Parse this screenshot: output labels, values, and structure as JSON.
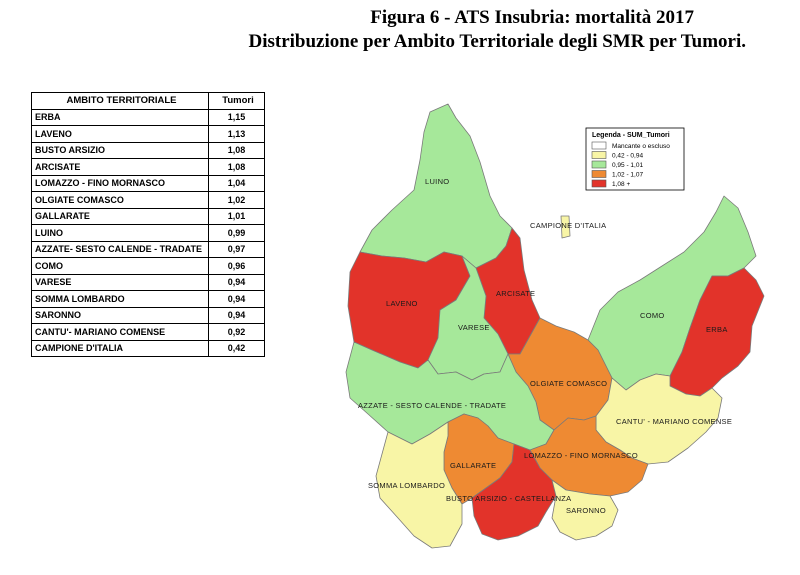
{
  "title": "Figura 6 - ATS Insubria: mortalità 2017",
  "subtitle": "Distribuzione per Ambito Territoriale degli SMR per Tumori.",
  "table": {
    "header_area": "AMBITO TERRITORIALE",
    "header_value": "Tumori",
    "rows": [
      {
        "area": "ERBA",
        "value": "1,15"
      },
      {
        "area": "LAVENO",
        "value": "1,13"
      },
      {
        "area": "BUSTO ARSIZIO",
        "value": "1,08"
      },
      {
        "area": "ARCISATE",
        "value": "1,08"
      },
      {
        "area": "LOMAZZO - FINO MORNASCO",
        "value": "1,04"
      },
      {
        "area": "OLGIATE COMASCO",
        "value": "1,02"
      },
      {
        "area": "GALLARATE",
        "value": "1,01"
      },
      {
        "area": "LUINO",
        "value": "0,99"
      },
      {
        "area": "AZZATE- SESTO CALENDE - TRADATE",
        "value": "0,97"
      },
      {
        "area": "COMO",
        "value": "0,96"
      },
      {
        "area": "VARESE",
        "value": "0,94"
      },
      {
        "area": "SOMMA LOMBARDO",
        "value": "0,94"
      },
      {
        "area": "SARONNO",
        "value": "0,94"
      },
      {
        "area": "CANTU'- MARIANO COMENSE",
        "value": "0,92"
      },
      {
        "area": "CAMPIONE D'ITALIA",
        "value": "0,42"
      }
    ]
  },
  "legend": {
    "title": "Legenda - SUM_Tumori",
    "items": [
      {
        "label": "Mancante o escluso",
        "color": "#ffffff"
      },
      {
        "label": "0,42 - 0,94",
        "color": "#f8f5a6"
      },
      {
        "label": "0,95 - 1,01",
        "color": "#a6e89a"
      },
      {
        "label": "1,02 - 1,07",
        "color": "#ee8a33"
      },
      {
        "label": "1,08 +",
        "color": "#e2332a"
      }
    ]
  },
  "map_labels": {
    "luino": "LUINO",
    "campione": "CAMPIONE D'ITALIA",
    "laveno": "LAVENO",
    "arcisate": "ARCISATE",
    "varese": "VARESE",
    "como": "COMO",
    "erba": "ERBA",
    "olgiate": "OLGIATE COMASCO",
    "azzate": "AZZATE - SESTO CALENDE - TRADATE",
    "cantu": "CANTU' - MARIANO COMENSE",
    "gallarate": "GALLARATE",
    "lomazzo": "LOMAZZO - FINO MORNASCO",
    "somma": "SOMMA LOMBARDO",
    "busto": "BUSTO ARSIZIO - CASTELLANZA",
    "saronno": "SARONNO"
  },
  "colors": {
    "low": "#f8f5a6",
    "mid": "#a6e89a",
    "high": "#ee8a33",
    "top": "#e2332a",
    "border": "#7a7a7a"
  }
}
